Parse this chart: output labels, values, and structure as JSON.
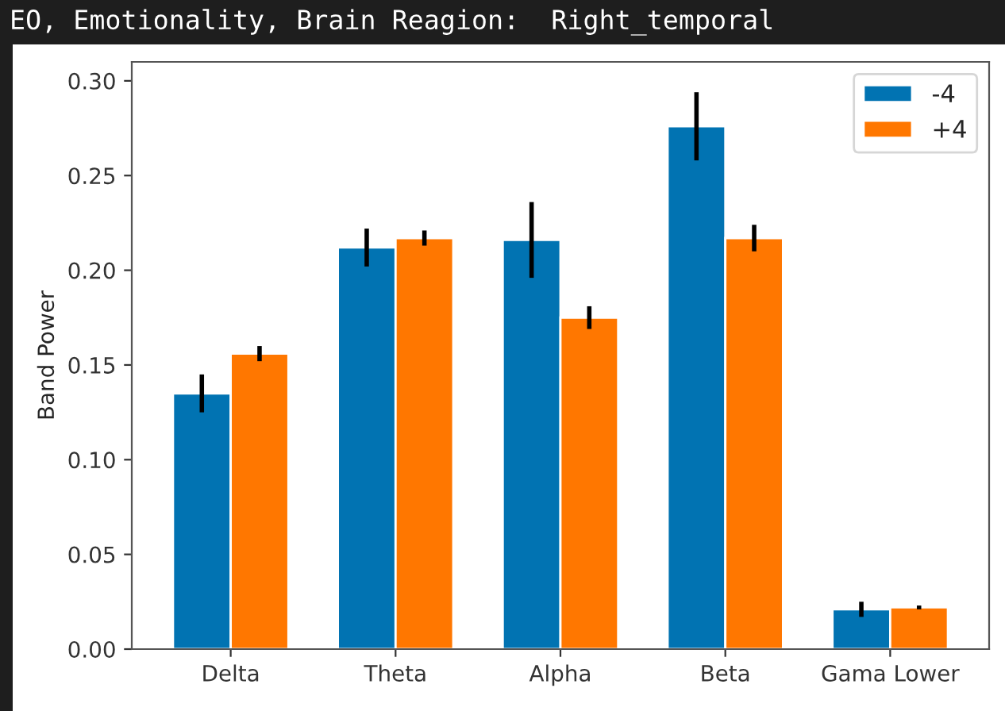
{
  "chart_data": {
    "type": "bar",
    "title": "EO, Emotionality, Brain Reagion:  Right_temporal",
    "ylabel": "Band Power",
    "categories": [
      "Delta",
      "Theta",
      "Alpha",
      "Beta",
      "Gama Lower"
    ],
    "series": [
      {
        "name": "-4",
        "color": "#0173b2",
        "values": [
          0.135,
          0.212,
          0.216,
          0.276,
          0.021
        ],
        "errors": [
          0.01,
          0.01,
          0.02,
          0.018,
          0.004
        ]
      },
      {
        "name": "+4",
        "color": "#ff7700",
        "values": [
          0.156,
          0.217,
          0.175,
          0.217,
          0.022
        ],
        "errors": [
          0.004,
          0.004,
          0.006,
          0.007,
          0.001
        ]
      }
    ],
    "ylim": [
      0,
      0.31
    ],
    "yticks": [
      {
        "value": 0,
        "label": "0.00"
      },
      {
        "value": 0.05,
        "label": "0.05"
      },
      {
        "value": 0.1,
        "label": "0.10"
      },
      {
        "value": 0.15,
        "label": "0.15"
      },
      {
        "value": 0.2,
        "label": "0.20"
      },
      {
        "value": 0.25,
        "label": "0.25"
      },
      {
        "value": 0.3,
        "label": "0.30"
      }
    ],
    "legend": "top right",
    "grid": false
  }
}
